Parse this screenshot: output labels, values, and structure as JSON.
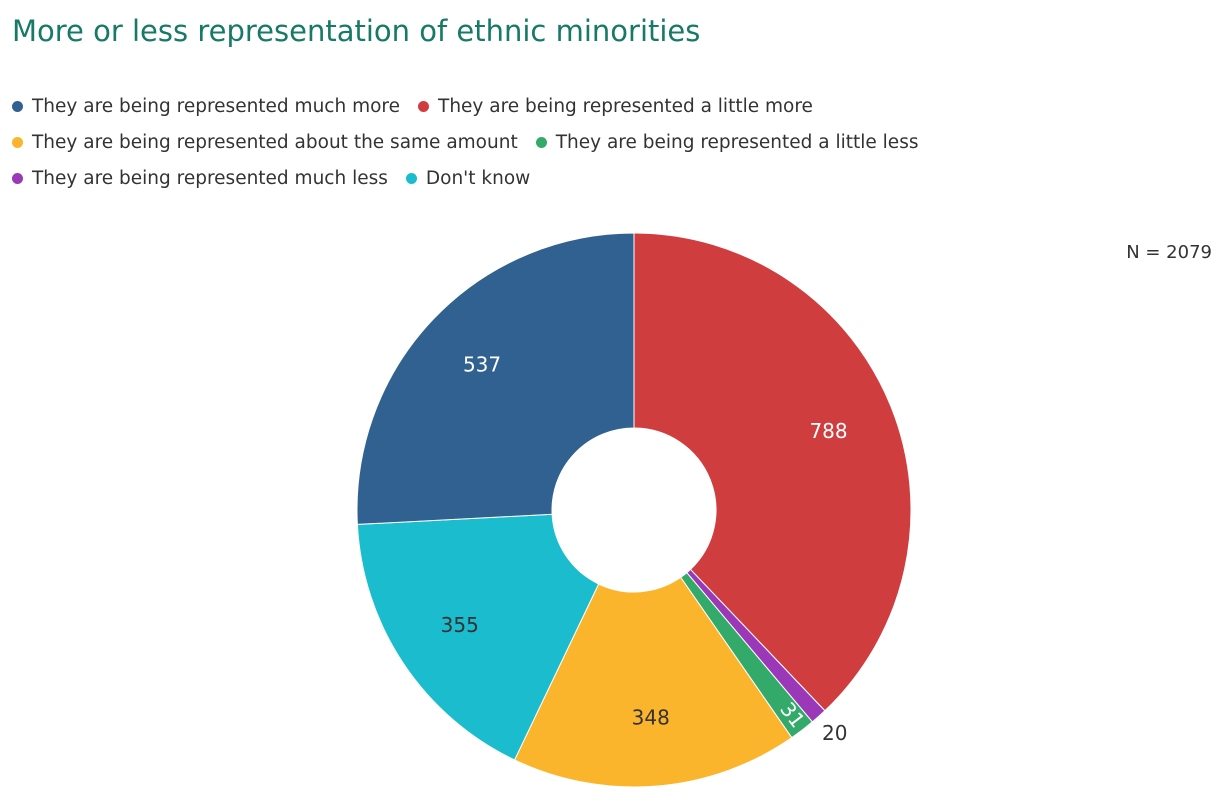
{
  "chart_data": {
    "type": "donut",
    "title": "More or less representation of ethnic minorities",
    "annotation": "N = 2079",
    "categories": [
      "They are being represented much more",
      "They are being represented a little more",
      "They are being represented about the same amount",
      "They are being represented a little less",
      "They are being represented much less",
      "Don't know"
    ],
    "values": [
      537,
      788,
      348,
      31,
      20,
      355
    ],
    "colors": [
      "#316190",
      "#d03d3e",
      "#fbb52c",
      "#34aa6a",
      "#9a38b8",
      "#1bbccd"
    ]
  }
}
